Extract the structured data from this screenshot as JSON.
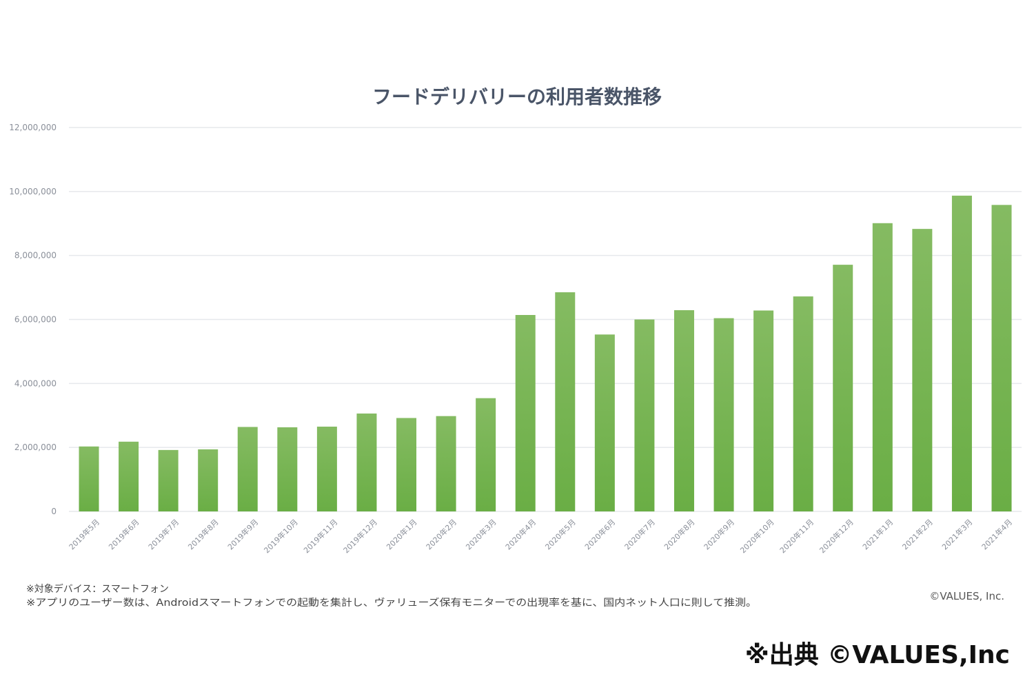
{
  "chart_data": {
    "type": "bar",
    "title": "フードデリバリーの利用者数推移",
    "xlabel": "",
    "ylabel": "",
    "ylim": [
      0,
      12000000
    ],
    "y_ticks": [
      0,
      2000000,
      4000000,
      6000000,
      8000000,
      10000000,
      12000000
    ],
    "y_tick_labels": [
      "0",
      "2,000,000",
      "4,000,000",
      "6,000,000",
      "8,000,000",
      "10,000,000",
      "12,000,000"
    ],
    "grid": true,
    "legend": "none",
    "bar_color": "#6aae45",
    "bar_color_light": "#85bb62",
    "categories": [
      "2019年5月",
      "2019年6月",
      "2019年7月",
      "2019年8月",
      "2019年9月",
      "2019年10月",
      "2019年11月",
      "2019年12月",
      "2020年1月",
      "2020年2月",
      "2020年3月",
      "2020年4月",
      "2020年5月",
      "2020年6月",
      "2020年7月",
      "2020年8月",
      "2020年9月",
      "2020年10月",
      "2020年11月",
      "2020年12月",
      "2021年1月",
      "2021年2月",
      "2021年3月",
      "2021年4月"
    ],
    "values": [
      2030000,
      2180000,
      1920000,
      1940000,
      2640000,
      2630000,
      2650000,
      3060000,
      2920000,
      2980000,
      3540000,
      6140000,
      6850000,
      5530000,
      6000000,
      6290000,
      6040000,
      6280000,
      6720000,
      7710000,
      9010000,
      8830000,
      9870000,
      9580000
    ]
  },
  "notes": [
    "※対象デバイス：スマートフォン",
    "※アプリのユーザー数は、Androidスマートフォンでの起動を集計し、ヴァリューズ保有モニターでの出現率を基に、国内ネット人口に則して推測。"
  ],
  "copyright": "©VALUES, Inc.",
  "source_credit": "※出典 ©VALUES,Inc"
}
